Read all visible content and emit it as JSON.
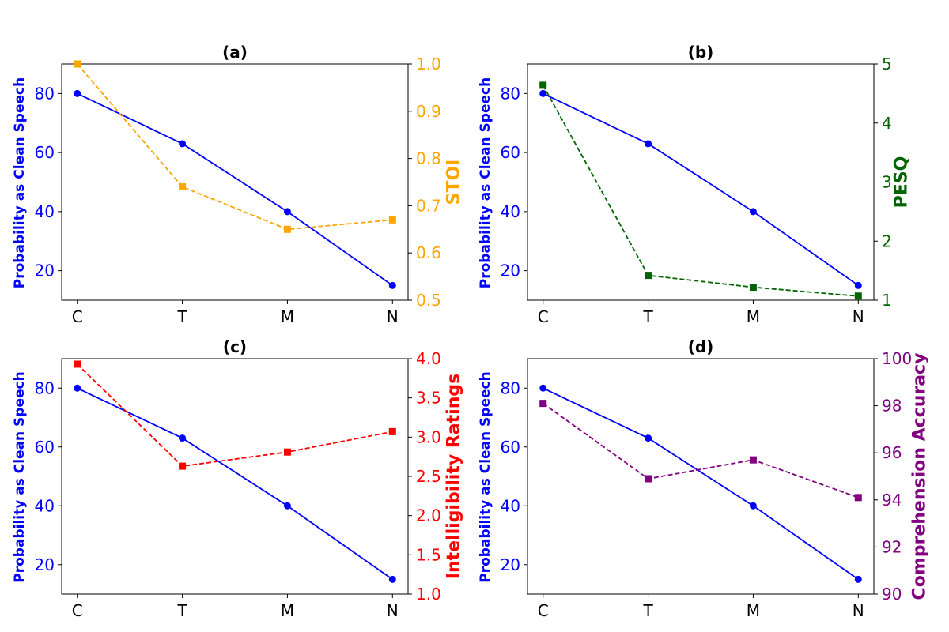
{
  "chart_data": [
    {
      "type": "line",
      "title": "(a)",
      "categories": [
        "C",
        "T",
        "M",
        "N"
      ],
      "ylabel": "Probability as Clean Speech",
      "ylim": [
        10,
        90
      ],
      "yticks": [
        20,
        40,
        60,
        80
      ],
      "ytick_labels": [
        "20",
        "40",
        "60",
        "80"
      ],
      "y2label": "STOI",
      "y2lim": [
        0.5,
        1.0
      ],
      "y2ticks": [
        0.5,
        0.6,
        0.7,
        0.8,
        0.9,
        1.0
      ],
      "y2tick_labels": [
        "0.5",
        "0.6",
        "0.7",
        "0.8",
        "0.9",
        "1.0"
      ],
      "series": [
        {
          "name": "Probability as Clean Speech",
          "axis": "left",
          "values": [
            80,
            63,
            40,
            15
          ],
          "color": "#0000ff",
          "marker": "circle",
          "dash": "solid"
        },
        {
          "name": "STOI",
          "axis": "right",
          "values": [
            1.0,
            0.74,
            0.65,
            0.67
          ],
          "color": "#ffa500",
          "marker": "square",
          "dash": "dashed"
        }
      ],
      "left_color": "#0000ff",
      "right_color": "#ffa500"
    },
    {
      "type": "line",
      "title": "(b)",
      "categories": [
        "C",
        "T",
        "M",
        "N"
      ],
      "ylabel": "Probability as Clean Speech",
      "ylim": [
        10,
        90
      ],
      "yticks": [
        20,
        40,
        60,
        80
      ],
      "ytick_labels": [
        "20",
        "40",
        "60",
        "80"
      ],
      "y2label": "PESQ",
      "y2lim": [
        1,
        5
      ],
      "y2ticks": [
        1,
        2,
        3,
        4,
        5
      ],
      "y2tick_labels": [
        "1",
        "2",
        "3",
        "4",
        "5"
      ],
      "series": [
        {
          "name": "Probability as Clean Speech",
          "axis": "left",
          "values": [
            80,
            63,
            40,
            15
          ],
          "color": "#0000ff",
          "marker": "circle",
          "dash": "solid"
        },
        {
          "name": "PESQ",
          "axis": "right",
          "values": [
            4.64,
            1.42,
            1.22,
            1.07
          ],
          "color": "#006400",
          "marker": "square",
          "dash": "dashed"
        }
      ],
      "left_color": "#0000ff",
      "right_color": "#006400"
    },
    {
      "type": "line",
      "title": "(c)",
      "categories": [
        "C",
        "T",
        "M",
        "N"
      ],
      "ylabel": "Probability as Clean Speech",
      "ylim": [
        10,
        90
      ],
      "yticks": [
        20,
        40,
        60,
        80
      ],
      "ytick_labels": [
        "20",
        "40",
        "60",
        "80"
      ],
      "y2label": "Intelligibility Ratings",
      "y2lim": [
        1.0,
        4.0
      ],
      "y2ticks": [
        1.0,
        1.5,
        2.0,
        2.5,
        3.0,
        3.5,
        4.0
      ],
      "y2tick_labels": [
        "1.0",
        "1.5",
        "2.0",
        "2.5",
        "3.0",
        "3.5",
        "4.0"
      ],
      "series": [
        {
          "name": "Probability as Clean Speech",
          "axis": "left",
          "values": [
            80,
            63,
            40,
            15
          ],
          "color": "#0000ff",
          "marker": "circle",
          "dash": "solid"
        },
        {
          "name": "Intelligibility Ratings",
          "axis": "right",
          "values": [
            3.93,
            2.63,
            2.81,
            3.07
          ],
          "color": "#ff0000",
          "marker": "square",
          "dash": "dashed"
        }
      ],
      "left_color": "#0000ff",
      "right_color": "#ff0000"
    },
    {
      "type": "line",
      "title": "(d)",
      "categories": [
        "C",
        "T",
        "M",
        "N"
      ],
      "ylabel": "Probability as Clean Speech",
      "ylim": [
        10,
        90
      ],
      "yticks": [
        20,
        40,
        60,
        80
      ],
      "ytick_labels": [
        "20",
        "40",
        "60",
        "80"
      ],
      "y2label": "Comprehension Accuracy",
      "y2lim": [
        90,
        100
      ],
      "y2ticks": [
        90,
        92,
        94,
        96,
        98,
        100
      ],
      "y2tick_labels": [
        "90",
        "92",
        "94",
        "96",
        "98",
        "100"
      ],
      "series": [
        {
          "name": "Probability as Clean Speech",
          "axis": "left",
          "values": [
            80,
            63,
            40,
            15
          ],
          "color": "#0000ff",
          "marker": "circle",
          "dash": "solid"
        },
        {
          "name": "Comprehension Accuracy",
          "axis": "right",
          "values": [
            98.1,
            94.9,
            95.7,
            94.1
          ],
          "color": "#800080",
          "marker": "square",
          "dash": "dashed"
        }
      ],
      "left_color": "#0000ff",
      "right_color": "#800080"
    }
  ]
}
